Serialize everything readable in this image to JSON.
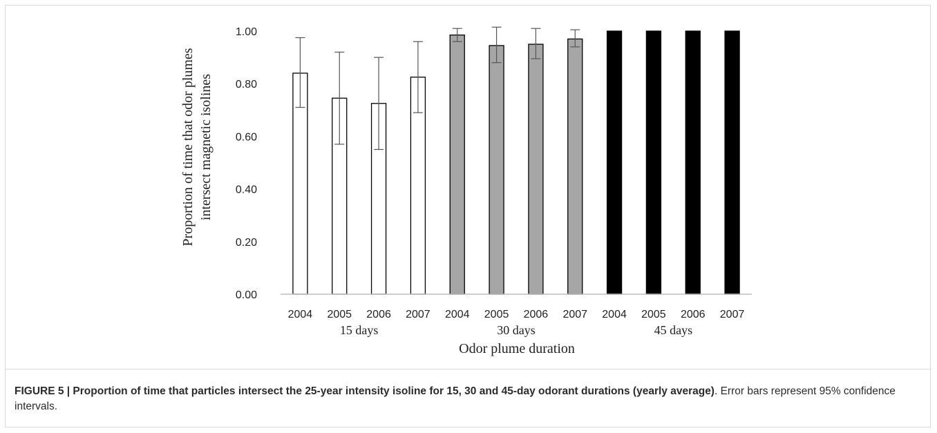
{
  "figure": {
    "caption_label": "FIGURE 5 | Proportion of time that particles intersect the 25-year intensity isoline for 15, 30 and 45-day odorant durations (yearly average)",
    "caption_rest": ". Error bars represent 95% confidence intervals."
  },
  "chart_data": {
    "type": "bar",
    "ylabel_lines": [
      "Proportion of time  that odor plumes",
      "intersect magnetic isolines"
    ],
    "xlabel": "Odor plume duration",
    "ylim": [
      0,
      1
    ],
    "yticks": [
      "0.00",
      "0.20",
      "0.40",
      "0.60",
      "0.80",
      "1.00"
    ],
    "grid": false,
    "categories": [
      "2004",
      "2005",
      "2006",
      "2007",
      "2004",
      "2005",
      "2006",
      "2007",
      "2004",
      "2005",
      "2006",
      "2007"
    ],
    "groups": [
      {
        "label": "15  days",
        "fill": "#ffffff",
        "values": [
          0.84,
          0.745,
          0.725,
          0.825
        ],
        "err_low": [
          0.71,
          0.57,
          0.55,
          0.69
        ],
        "err_high": [
          0.975,
          0.92,
          0.9,
          0.96
        ]
      },
      {
        "label": "30  days",
        "fill": "#a6a6a6",
        "values": [
          0.985,
          0.945,
          0.95,
          0.97
        ],
        "err_low": [
          0.96,
          0.88,
          0.895,
          0.94
        ],
        "err_high": [
          1.01,
          1.015,
          1.01,
          1.005
        ]
      },
      {
        "label": "45  days",
        "fill": "#000000",
        "values": [
          1.0,
          1.0,
          1.0,
          1.0
        ],
        "err_low": [
          1.0,
          1.0,
          1.0,
          1.0
        ],
        "err_high": [
          1.0,
          1.0,
          1.0,
          1.0
        ]
      }
    ]
  }
}
